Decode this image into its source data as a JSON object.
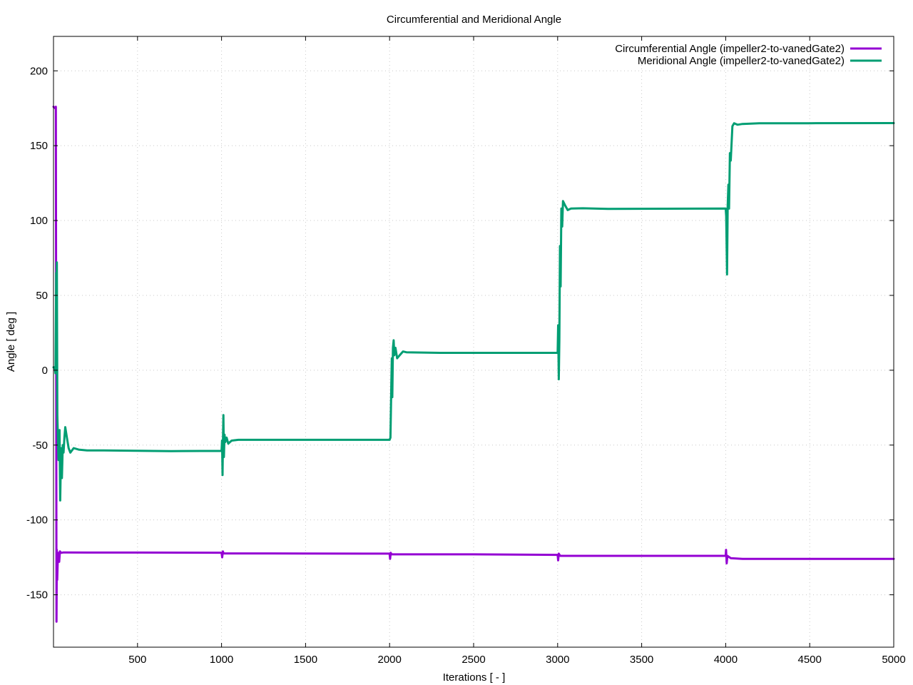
{
  "chart_data": {
    "type": "line",
    "title": "Circumferential and Meridional Angle",
    "xlabel": "Iterations [ - ]",
    "ylabel": "Angle [ deg ]",
    "xlim": [
      0,
      5000
    ],
    "ylim": [
      -185,
      223
    ],
    "xticks": [
      500,
      1000,
      1500,
      2000,
      2500,
      3000,
      3500,
      4000,
      4500,
      5000
    ],
    "yticks": [
      -150,
      -100,
      -50,
      0,
      50,
      100,
      150,
      200
    ],
    "grid": true,
    "legend_position": "top-right",
    "series": [
      {
        "name": "Circumferential Angle (impeller2-to-vanedGate2)",
        "color": "#9400d3",
        "points": [
          [
            0,
            176
          ],
          [
            10,
            175
          ],
          [
            14,
            176
          ],
          [
            16,
            0
          ],
          [
            18,
            -168
          ],
          [
            20,
            -120
          ],
          [
            22,
            -140
          ],
          [
            26,
            -125
          ],
          [
            30,
            -122
          ],
          [
            34,
            -128
          ],
          [
            38,
            -121
          ],
          [
            45,
            -122
          ],
          [
            60,
            -121.7
          ],
          [
            200,
            -121.8
          ],
          [
            500,
            -121.8
          ],
          [
            1000,
            -121.9
          ],
          [
            1004,
            -125
          ],
          [
            1008,
            -121
          ],
          [
            1012,
            -122.3
          ],
          [
            1500,
            -122.4
          ],
          [
            2000,
            -122.5
          ],
          [
            2003,
            -126
          ],
          [
            2007,
            -122
          ],
          [
            2012,
            -123
          ],
          [
            2500,
            -123
          ],
          [
            3000,
            -123.3
          ],
          [
            3003,
            -127
          ],
          [
            3007,
            -122.5
          ],
          [
            3015,
            -124
          ],
          [
            3500,
            -124
          ],
          [
            4000,
            -124
          ],
          [
            4002,
            -120
          ],
          [
            4006,
            -129
          ],
          [
            4010,
            -124
          ],
          [
            4030,
            -125.5
          ],
          [
            4100,
            -126
          ],
          [
            5000,
            -126
          ]
        ]
      },
      {
        "name": "Meridional Angle (impeller2-to-vanedGate2)",
        "color": "#009e73",
        "points": [
          [
            0,
            2
          ],
          [
            8,
            2
          ],
          [
            12,
            -2
          ],
          [
            16,
            65
          ],
          [
            18,
            55
          ],
          [
            20,
            72
          ],
          [
            23,
            -30
          ],
          [
            27,
            -50
          ],
          [
            30,
            -60
          ],
          [
            36,
            -40
          ],
          [
            40,
            -87
          ],
          [
            45,
            -52
          ],
          [
            50,
            -72
          ],
          [
            55,
            -50
          ],
          [
            60,
            -55
          ],
          [
            65,
            -45
          ],
          [
            70,
            -38
          ],
          [
            80,
            -45
          ],
          [
            90,
            -52
          ],
          [
            100,
            -55
          ],
          [
            120,
            -52
          ],
          [
            150,
            -53
          ],
          [
            200,
            -53.6
          ],
          [
            300,
            -53.6
          ],
          [
            500,
            -53.8
          ],
          [
            700,
            -54
          ],
          [
            1000,
            -53.9
          ],
          [
            1003,
            -47
          ],
          [
            1006,
            -70
          ],
          [
            1008,
            -50
          ],
          [
            1011,
            -30
          ],
          [
            1014,
            -58
          ],
          [
            1018,
            -43
          ],
          [
            1022,
            -48
          ],
          [
            1030,
            -45
          ],
          [
            1040,
            -49
          ],
          [
            1060,
            -47
          ],
          [
            1100,
            -46.5
          ],
          [
            1500,
            -46.5
          ],
          [
            2000,
            -46.5
          ],
          [
            2005,
            -45
          ],
          [
            2008,
            -25
          ],
          [
            2010,
            -10
          ],
          [
            2013,
            8
          ],
          [
            2016,
            -18
          ],
          [
            2020,
            15
          ],
          [
            2024,
            20
          ],
          [
            2028,
            10
          ],
          [
            2035,
            15
          ],
          [
            2045,
            8
          ],
          [
            2060,
            10
          ],
          [
            2080,
            12.5
          ],
          [
            2100,
            12
          ],
          [
            2300,
            11.6
          ],
          [
            2500,
            11.6
          ],
          [
            3000,
            11.6
          ],
          [
            3003,
            30
          ],
          [
            3007,
            -6
          ],
          [
            3010,
            20
          ],
          [
            3014,
            83
          ],
          [
            3018,
            56
          ],
          [
            3022,
            108
          ],
          [
            3027,
            96
          ],
          [
            3032,
            113
          ],
          [
            3045,
            110
          ],
          [
            3060,
            107
          ],
          [
            3080,
            108
          ],
          [
            3150,
            108.2
          ],
          [
            3300,
            107.8
          ],
          [
            4000,
            108
          ],
          [
            4003,
            103
          ],
          [
            4008,
            64
          ],
          [
            4012,
            110
          ],
          [
            4016,
            124
          ],
          [
            4020,
            108
          ],
          [
            4025,
            145
          ],
          [
            4030,
            140
          ],
          [
            4040,
            163
          ],
          [
            4050,
            165
          ],
          [
            4070,
            164
          ],
          [
            4100,
            164.5
          ],
          [
            4200,
            165
          ],
          [
            4500,
            165
          ],
          [
            5000,
            165.1
          ]
        ]
      }
    ]
  }
}
